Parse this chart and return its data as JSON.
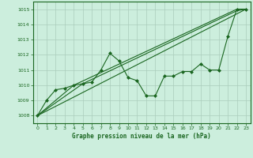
{
  "background_color": "#cceedd",
  "grid_color": "#aaccbb",
  "line_color": "#1a6620",
  "marker_color": "#1a6620",
  "title": "Graphe pression niveau de la mer (hPa)",
  "xlim": [
    -0.5,
    23.5
  ],
  "ylim": [
    1007.5,
    1015.5
  ],
  "yticks": [
    1008,
    1009,
    1010,
    1011,
    1012,
    1013,
    1014,
    1015
  ],
  "xticks": [
    0,
    1,
    2,
    3,
    4,
    5,
    6,
    7,
    8,
    9,
    10,
    11,
    12,
    13,
    14,
    15,
    16,
    17,
    18,
    19,
    20,
    21,
    22,
    23
  ],
  "series1_x": [
    0,
    1,
    2,
    3,
    4,
    5,
    6,
    7,
    8,
    9,
    10,
    11,
    12,
    13,
    14,
    15,
    16,
    17,
    18,
    19,
    20,
    21,
    22,
    23
  ],
  "series1_y": [
    1008.0,
    1009.0,
    1009.7,
    1009.8,
    1010.0,
    1010.1,
    1010.2,
    1011.0,
    1012.1,
    1011.6,
    1010.5,
    1010.3,
    1009.3,
    1009.3,
    1010.6,
    1010.6,
    1010.9,
    1010.9,
    1011.4,
    1011.0,
    1011.0,
    1013.2,
    1015.0,
    1015.0
  ],
  "series2_x": [
    0,
    23
  ],
  "series2_y": [
    1008.0,
    1015.0
  ],
  "series3_x": [
    0,
    5,
    22,
    23
  ],
  "series3_y": [
    1008.0,
    1010.1,
    1014.9,
    1015.0
  ],
  "series4_x": [
    0,
    4,
    22,
    23
  ],
  "series4_y": [
    1008.0,
    1010.0,
    1015.0,
    1015.0
  ]
}
